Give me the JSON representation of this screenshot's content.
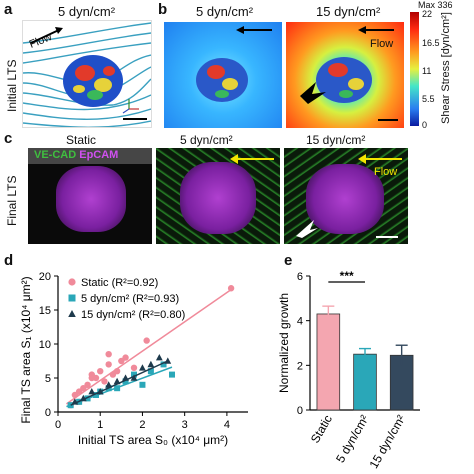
{
  "panels": {
    "a": {
      "letter": "a",
      "title": "5 dyn/cm²",
      "flow": "Flow",
      "row_label": "Initial LTS"
    },
    "b": {
      "letter": "b",
      "title_left": "5 dyn/cm²",
      "title_right": "15 dyn/cm²",
      "flow": "Flow",
      "colorbar": {
        "max_label": "Max 336",
        "ticks": [
          "22",
          "16.5",
          "11",
          "5.5",
          "0"
        ],
        "label": "Shear Stress [dyn/cm²]"
      }
    },
    "c": {
      "letter": "c",
      "titles": [
        "Static",
        "5 dyn/cm²",
        "15 dyn/cm²"
      ],
      "stain_green": "VE-CAD",
      "stain_magenta": "EpCAM",
      "flow": "Flow",
      "row_label": "Final LTS",
      "colors": {
        "green": "#3fbf3f",
        "magenta": "#c040e0",
        "yellow": "#f2e600"
      }
    },
    "d": {
      "letter": "d"
    },
    "e": {
      "letter": "e"
    }
  },
  "chart_data": [
    {
      "type": "scatter",
      "panel": "d",
      "xlabel": "Initial TS area S₀ (x10⁴ μm²)",
      "ylabel": "Final TS area S₁ (x10⁴ μm²)",
      "xlim": [
        0,
        4.5
      ],
      "ylim": [
        0,
        20
      ],
      "xticks": [
        "0",
        "1",
        "2",
        "3",
        "4"
      ],
      "yticks": [
        "0",
        "5",
        "10",
        "15",
        "20"
      ],
      "legend": "top-left",
      "series": [
        {
          "name": "Static (R²=0.92)",
          "color": "#f08a9a",
          "marker": "circle",
          "x": [
            0.3,
            0.4,
            0.5,
            0.6,
            0.7,
            0.8,
            0.9,
            1.0,
            1.1,
            1.2,
            1.3,
            1.4,
            1.5,
            1.6,
            1.8,
            2.1,
            0.5,
            0.8,
            1.2,
            4.1
          ],
          "y": [
            1.0,
            2.5,
            1.5,
            3.5,
            4.0,
            5.5,
            5.0,
            6.0,
            4.5,
            7.0,
            5.5,
            6.0,
            7.5,
            8.0,
            6.5,
            10.5,
            3.0,
            5.0,
            8.5,
            18.2
          ],
          "fit": [
            [
              0.2,
              1.2
            ],
            [
              4.1,
              18.0
            ]
          ]
        },
        {
          "name": "5 dyn/cm² (R²=0.93)",
          "color": "#2aa7b8",
          "marker": "square",
          "x": [
            0.3,
            0.5,
            0.7,
            0.9,
            1.0,
            1.2,
            1.4,
            1.6,
            1.8,
            2.0,
            2.2,
            2.5,
            2.7
          ],
          "y": [
            1.0,
            1.5,
            2.0,
            2.5,
            3.0,
            3.5,
            3.5,
            4.5,
            5.5,
            4.0,
            6.0,
            7.0,
            5.5
          ],
          "fit": [
            [
              0.2,
              0.8
            ],
            [
              2.7,
              6.6
            ]
          ]
        },
        {
          "name": "15 dyn/cm² (R²=0.80)",
          "color": "#1e3a4c",
          "marker": "triangle",
          "x": [
            0.4,
            0.6,
            0.8,
            1.0,
            1.2,
            1.4,
            1.6,
            1.8,
            2.0,
            2.2,
            2.4,
            2.6
          ],
          "y": [
            1.5,
            2.0,
            3.0,
            3.0,
            4.0,
            4.5,
            5.0,
            5.0,
            6.5,
            7.0,
            8.0,
            7.5
          ],
          "fit": [
            [
              0.3,
              1.0
            ],
            [
              2.6,
              7.5
            ]
          ]
        }
      ]
    },
    {
      "type": "bar",
      "panel": "e",
      "categories": [
        "Static",
        "5 dyn/cm²",
        "15 dyn/cm²"
      ],
      "values": [
        4.3,
        2.5,
        2.45
      ],
      "errors": [
        0.35,
        0.25,
        0.45
      ],
      "colors": [
        "#f4a6b0",
        "#2aa7b8",
        "#34495e"
      ],
      "ylabel": "Normalized growth",
      "ylim": [
        0,
        6
      ],
      "yticks": [
        "0",
        "2",
        "4",
        "6"
      ],
      "significance": "***"
    }
  ]
}
